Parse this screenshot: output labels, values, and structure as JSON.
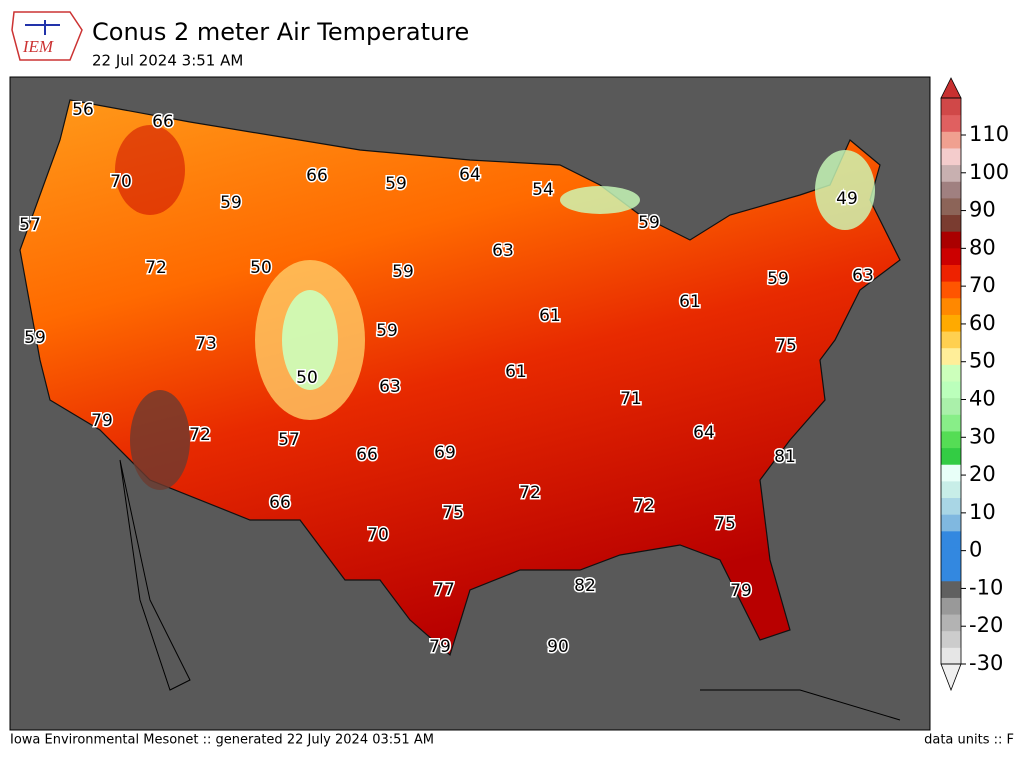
{
  "header": {
    "logo": "IEM",
    "title": "Conus 2 meter Air Temperature",
    "subtitle": "22 Jul 2024 3:51 AM"
  },
  "map": {
    "labels": [
      56,
      66,
      70,
      59,
      66,
      59,
      64,
      54,
      49,
      59,
      57,
      50,
      72,
      59,
      63,
      63,
      59,
      61,
      61,
      59,
      73,
      59,
      75,
      50,
      63,
      61,
      71,
      79,
      72,
      57,
      66,
      69,
      64,
      81,
      66,
      72,
      72,
      75,
      75,
      70,
      82,
      77,
      79,
      79,
      90
    ]
  },
  "colorbar": {
    "ticks": [
      110,
      100,
      90,
      80,
      70,
      60,
      50,
      40,
      30,
      20,
      10,
      0,
      -10,
      -20,
      -30
    ]
  },
  "footer": {
    "left": "Iowa Environmental Mesonet :: generated 22 July 2024 03:51 AM",
    "right": "data units :: F"
  }
}
